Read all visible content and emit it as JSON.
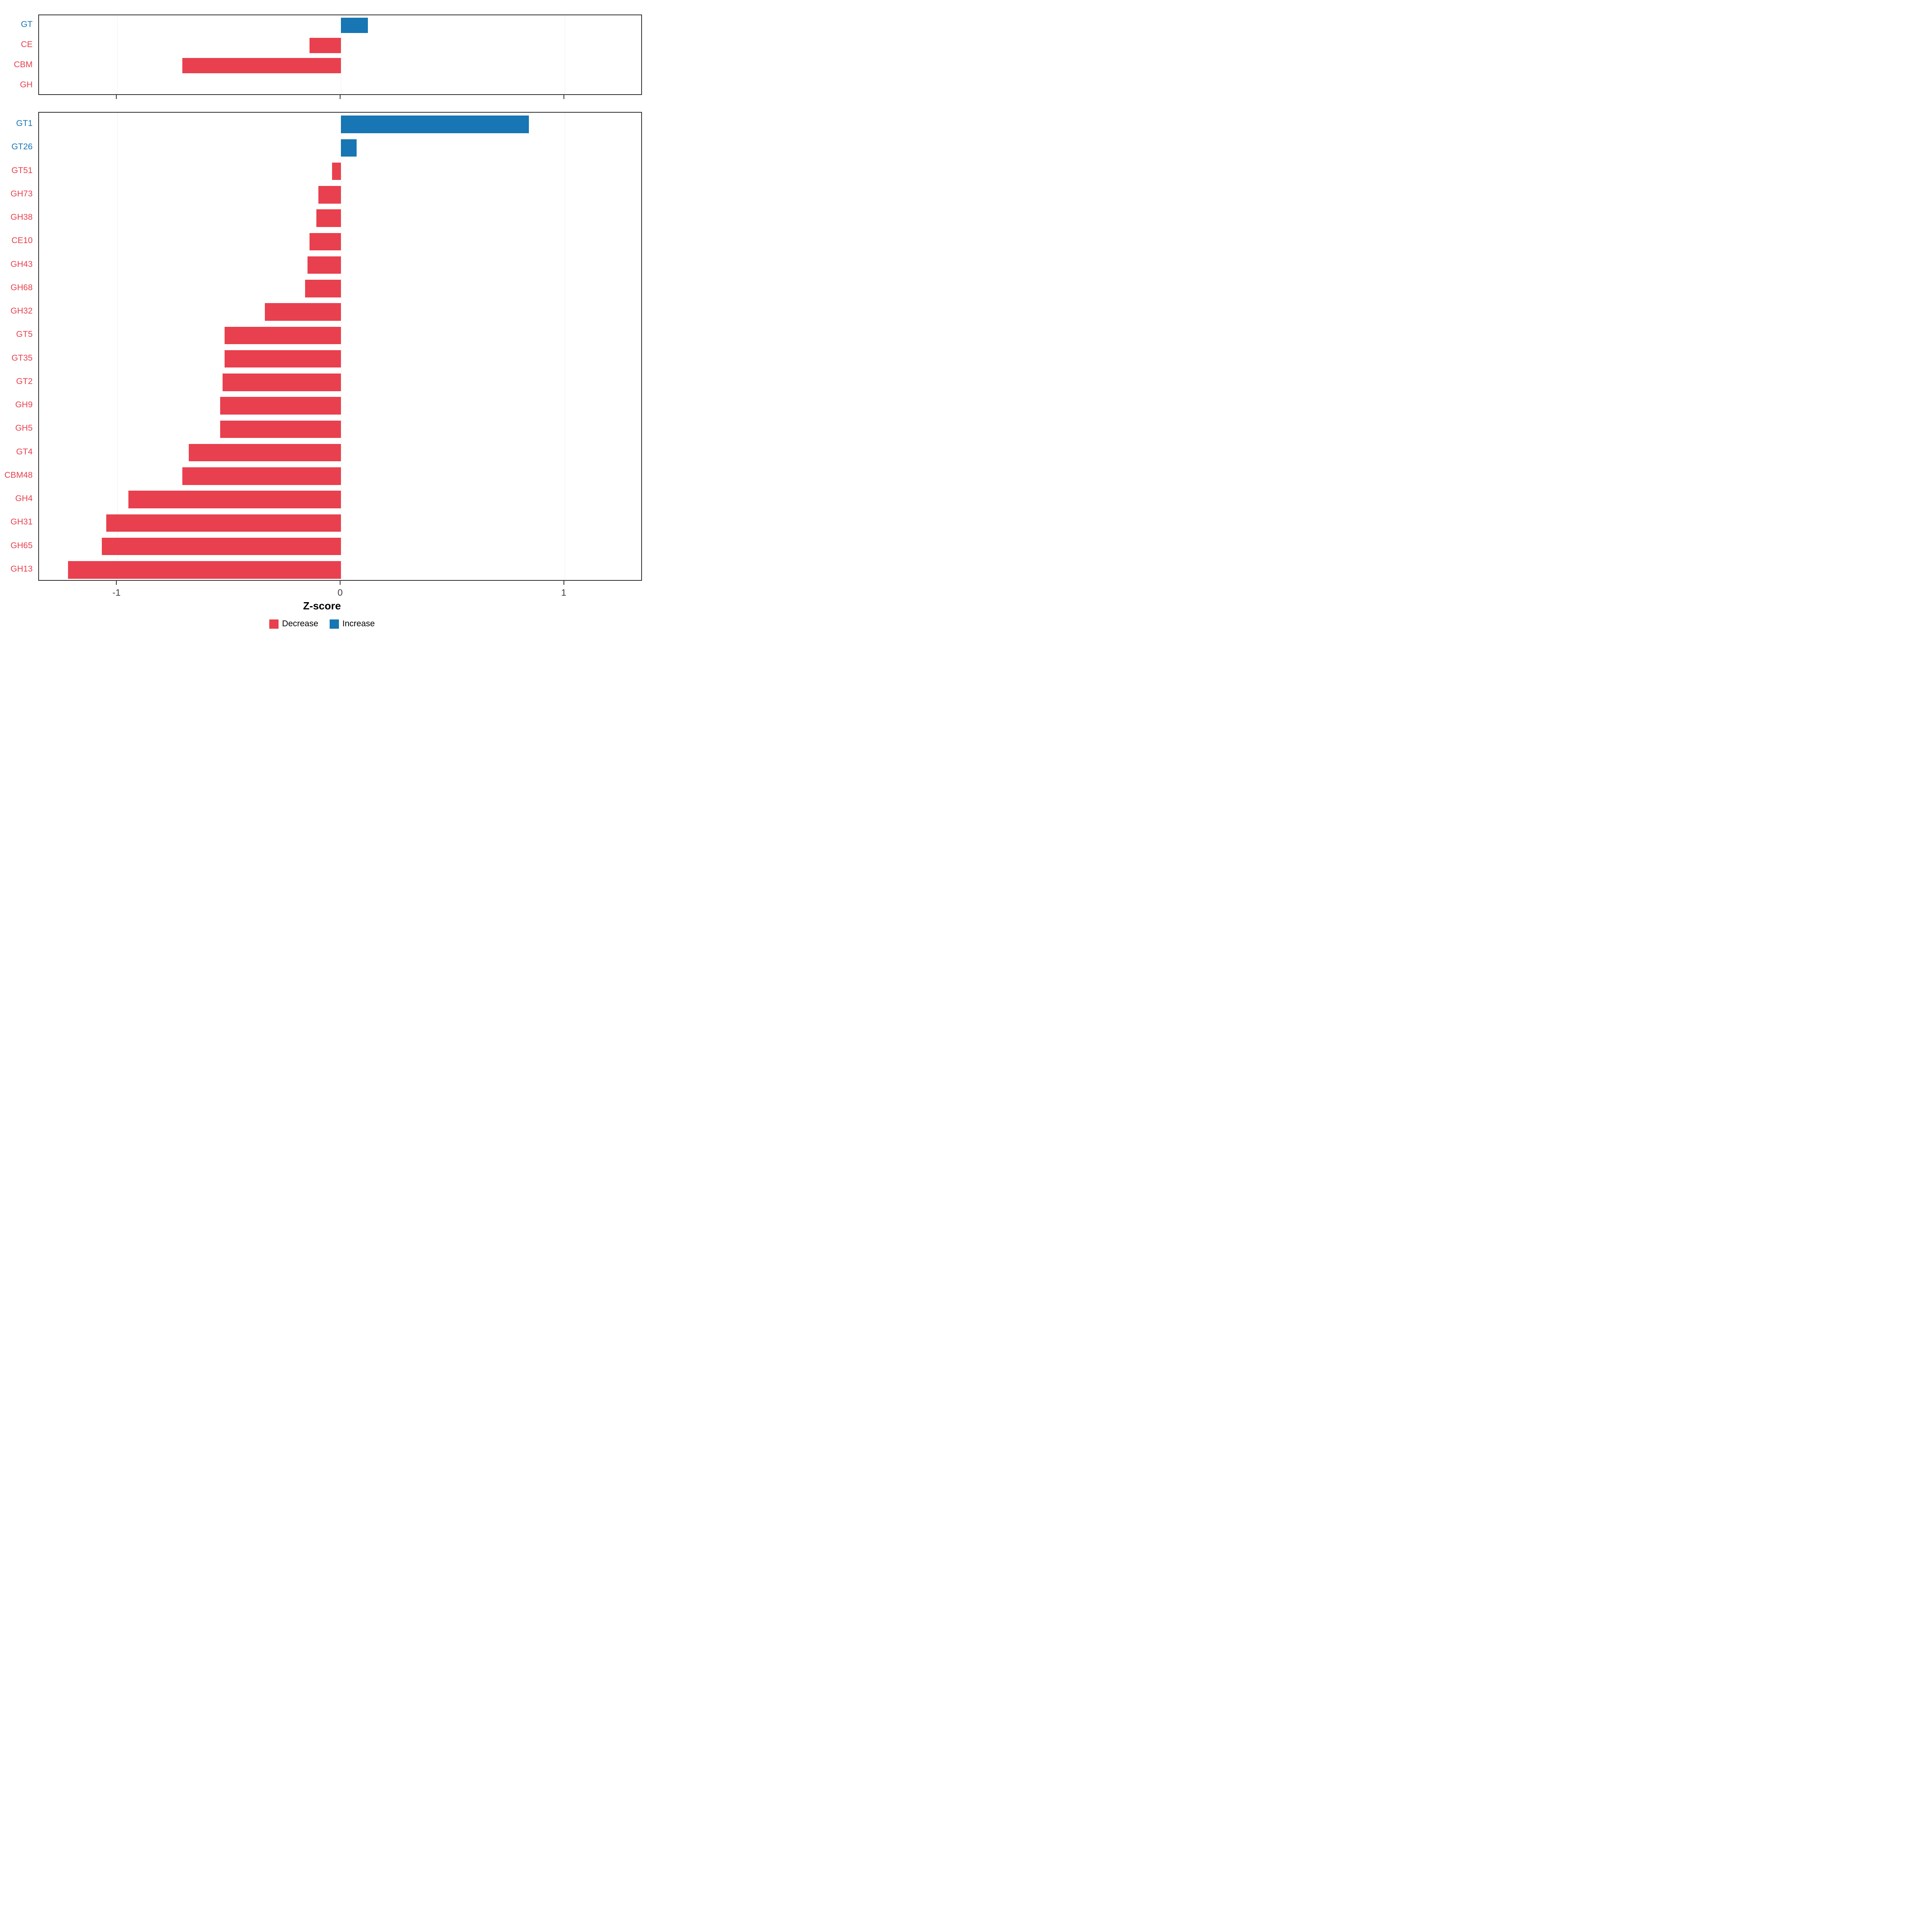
{
  "colors": {
    "decrease": "#E8404E",
    "increase": "#1776B3",
    "axis_text": "#404040",
    "panel_border": "#333333"
  },
  "legend": {
    "items": [
      {
        "label": "Decrease",
        "color": "#E8404E"
      },
      {
        "label": "Increase",
        "color": "#1776B3"
      }
    ]
  },
  "chart_data": [
    {
      "type": "bar",
      "orientation": "horizontal",
      "title": "",
      "xlabel": "",
      "ylabel": "",
      "xlim": [
        -1.35,
        1.35
      ],
      "xticks": [
        -1,
        0,
        1
      ],
      "grid": true,
      "categories": [
        "GT",
        "CE",
        "CBM",
        "GH"
      ],
      "values": [
        0.12,
        -0.14,
        -0.71,
        0
      ]
    },
    {
      "type": "bar",
      "orientation": "horizontal",
      "title": "",
      "xlabel": "Z-score",
      "ylabel": "",
      "xlim": [
        -1.35,
        1.35
      ],
      "xticks": [
        -1,
        0,
        1
      ],
      "grid": true,
      "categories": [
        "GT1",
        "GT26",
        "GT51",
        "GH73",
        "GH38",
        "CE10",
        "GH43",
        "GH68",
        "GH32",
        "GT5",
        "GT35",
        "GT2",
        "GH9",
        "GH5",
        "GT4",
        "CBM48",
        "GH4",
        "GH31",
        "GH65",
        "GH13"
      ],
      "values": [
        0.84,
        0.07,
        -0.04,
        -0.1,
        -0.11,
        -0.14,
        -0.15,
        -0.16,
        -0.34,
        -0.52,
        -0.52,
        -0.53,
        -0.54,
        -0.54,
        -0.68,
        -0.71,
        -0.95,
        -1.05,
        -1.07,
        -1.22
      ]
    }
  ]
}
